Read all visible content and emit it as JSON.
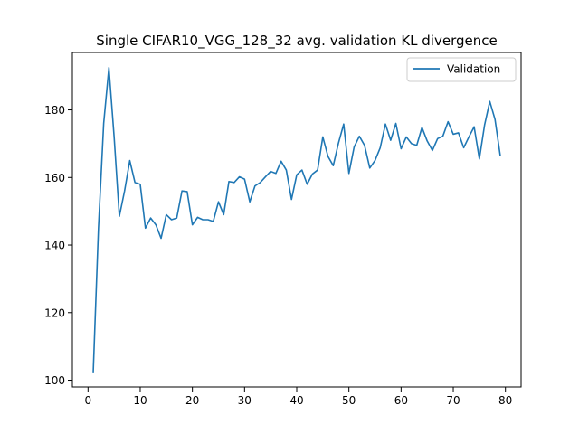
{
  "chart_data": {
    "type": "line",
    "title": "Single CIFAR10_VGG_128_32 avg. validation KL divergence",
    "xlabel": "",
    "ylabel": "",
    "xlim": [
      -3,
      83
    ],
    "ylim": [
      98,
      197
    ],
    "x_ticks": [
      0,
      10,
      20,
      30,
      40,
      50,
      60,
      70,
      80
    ],
    "y_ticks": [
      100,
      120,
      140,
      160,
      180
    ],
    "grid": false,
    "legend": {
      "position": "top-right",
      "entries": [
        "Validation"
      ]
    },
    "series": [
      {
        "name": "Validation",
        "color": "#1f77b4",
        "x": [
          1,
          2,
          3,
          4,
          5,
          6,
          7,
          8,
          9,
          10,
          11,
          12,
          13,
          14,
          15,
          16,
          17,
          18,
          19,
          20,
          21,
          22,
          23,
          24,
          25,
          26,
          27,
          28,
          29,
          30,
          31,
          32,
          33,
          34,
          35,
          36,
          37,
          38,
          39,
          40,
          41,
          42,
          43,
          44,
          45,
          46,
          47,
          48,
          49,
          50,
          51,
          52,
          53,
          54,
          55,
          56,
          57,
          58,
          59,
          60,
          61,
          62,
          63,
          64,
          65,
          66,
          67,
          68,
          69,
          70,
          71,
          72,
          73,
          74,
          75,
          76,
          77,
          78,
          79
        ],
        "values": [
          102.5,
          145.0,
          176.0,
          192.5,
          172.0,
          148.5,
          156.0,
          165.0,
          158.5,
          158.0,
          145.0,
          148.0,
          146.0,
          142.0,
          149.0,
          147.5,
          148.0,
          156.0,
          155.8,
          146.0,
          148.2,
          147.5,
          147.5,
          147.0,
          152.8,
          149.0,
          158.8,
          158.5,
          160.2,
          159.5,
          152.8,
          157.5,
          158.5,
          160.2,
          161.8,
          161.2,
          164.8,
          162.2,
          153.5,
          160.8,
          162.2,
          158.0,
          161.0,
          162.2,
          172.0,
          166.2,
          163.5,
          170.2,
          175.8,
          161.2,
          169.0,
          172.2,
          169.5,
          162.8,
          165.0,
          168.8,
          175.8,
          171.0,
          176.0,
          168.5,
          172.0,
          170.0,
          169.5,
          174.8,
          170.8,
          168.0,
          171.5,
          172.2,
          176.5,
          172.8,
          173.2,
          168.8,
          172.0,
          175.0,
          165.5,
          175.5,
          182.5,
          177.2,
          166.5
        ]
      }
    ]
  }
}
